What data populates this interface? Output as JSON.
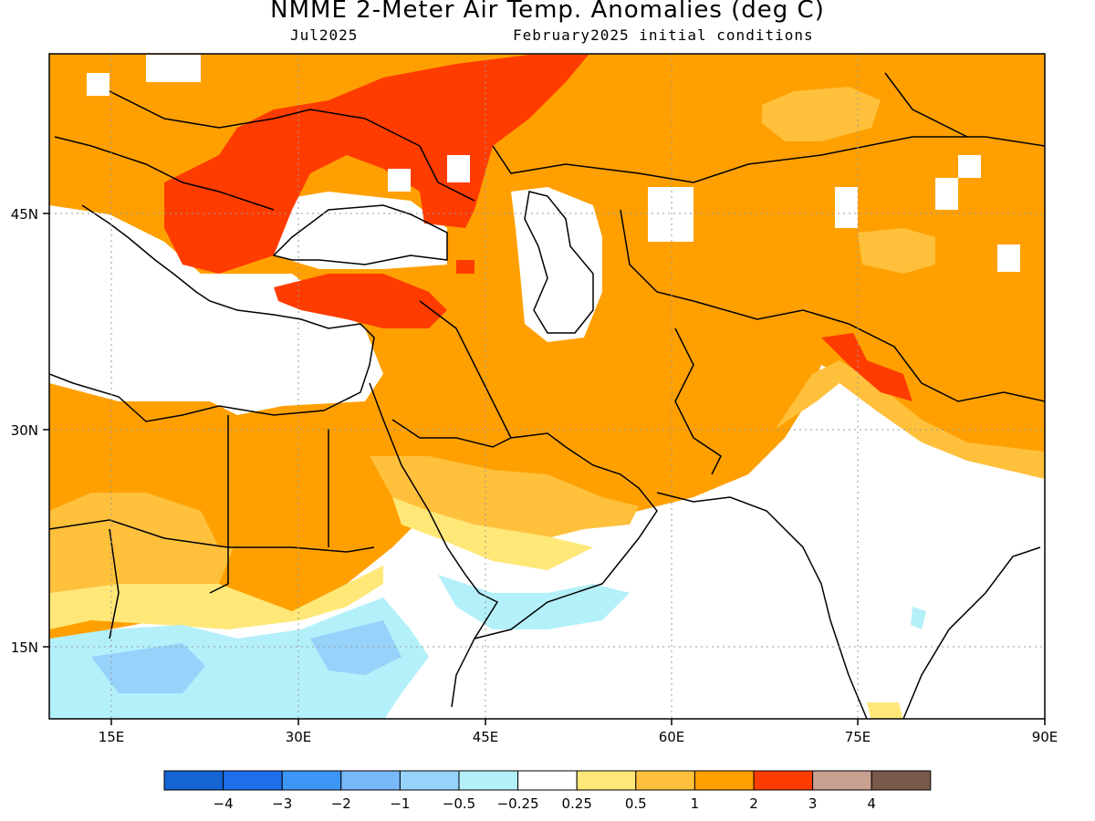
{
  "title": "NMME 2-Meter Air Temp. Anomalies (deg C)",
  "valid_month": "Jul2025",
  "init_conditions": "February2025 initial conditions",
  "map": {
    "lon_range": [
      10,
      90
    ],
    "lat_range": [
      10,
      55
    ],
    "lon_ticks": [
      "15E",
      "30E",
      "45E",
      "60E",
      "75E",
      "90E"
    ],
    "lat_ticks": [
      "45N",
      "30N",
      "15N"
    ]
  },
  "colorbar": {
    "colors": [
      "#1464D2",
      "#1E6EEB",
      "#3C96F5",
      "#78B9FA",
      "#96D2FA",
      "#B4F0FA",
      "#FFFFFF",
      "#FFE878",
      "#FFC03C",
      "#FFA000",
      "#FF3C00",
      "#C8A090",
      "#785A4B"
    ],
    "labels": [
      "−4",
      "−3",
      "−2",
      "−1",
      "−0.5",
      "−0.25",
      "0.25",
      "0.5",
      "1",
      "2",
      "3",
      "4"
    ]
  }
}
